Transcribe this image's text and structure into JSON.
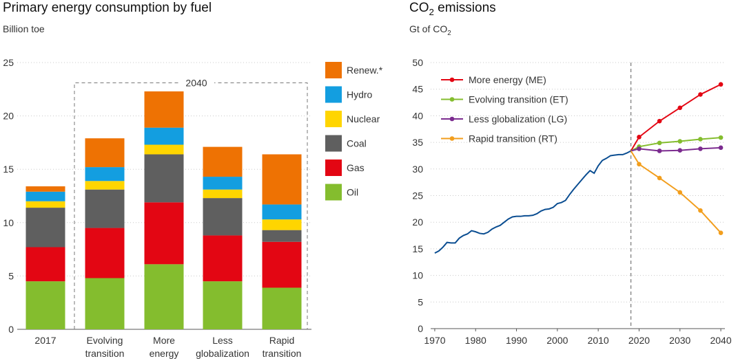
{
  "chart_data": [
    {
      "type": "bar",
      "stacked": true,
      "title": "Primary energy consumption by fuel",
      "ylabel": "Billion toe",
      "ylim": [
        0,
        25
      ],
      "yticks": [
        0,
        5,
        10,
        15,
        20,
        25
      ],
      "categories": [
        [
          "2017"
        ],
        [
          "Evolving",
          "transition"
        ],
        [
          "More",
          "energy"
        ],
        [
          "Less",
          "globalization"
        ],
        [
          "Rapid",
          "transition"
        ]
      ],
      "group_label": "2040",
      "series": [
        {
          "name": "Oil",
          "color": "#84bd2e",
          "values": [
            4.5,
            4.8,
            6.1,
            4.5,
            3.9
          ]
        },
        {
          "name": "Gas",
          "color": "#e30613",
          "values": [
            3.2,
            4.7,
            5.8,
            4.3,
            4.3
          ]
        },
        {
          "name": "Coal",
          "color": "#5f5f5f",
          "values": [
            3.7,
            3.6,
            4.5,
            3.5,
            1.1
          ]
        },
        {
          "name": "Nuclear",
          "color": "#ffd500",
          "values": [
            0.6,
            0.8,
            0.9,
            0.8,
            1.0
          ]
        },
        {
          "name": "Hydro",
          "color": "#139ee0",
          "values": [
            0.9,
            1.3,
            1.6,
            1.2,
            1.4
          ]
        },
        {
          "name": "Renew.*",
          "color": "#ee7203",
          "values": [
            0.5,
            2.7,
            3.4,
            2.8,
            4.7
          ]
        }
      ]
    },
    {
      "type": "line",
      "title_main": "CO",
      "title_sub": "2",
      "title_rest": " emissions",
      "ylabel_main": "Gt of CO",
      "ylabel_sub": "2",
      "xlim": [
        1969,
        2041
      ],
      "ylim": [
        0,
        50
      ],
      "xticks": [
        1970,
        1980,
        1990,
        2000,
        2010,
        2020,
        2030,
        2040
      ],
      "yticks": [
        0,
        5,
        10,
        15,
        20,
        25,
        30,
        35,
        40,
        45,
        50
      ],
      "reference_line_x": 2018,
      "history": {
        "color": "#0a4d91",
        "x": [
          1970,
          1971,
          1972,
          1973,
          1974,
          1975,
          1976,
          1977,
          1978,
          1979,
          1980,
          1981,
          1982,
          1983,
          1984,
          1985,
          1986,
          1987,
          1988,
          1989,
          1990,
          1991,
          1992,
          1993,
          1994,
          1995,
          1996,
          1997,
          1998,
          1999,
          2000,
          2001,
          2002,
          2003,
          2004,
          2005,
          2006,
          2007,
          2008,
          2009,
          2010,
          2011,
          2012,
          2013,
          2014,
          2015,
          2016,
          2017,
          2018
        ],
        "y": [
          14.2,
          14.6,
          15.3,
          16.2,
          16.1,
          16.1,
          17.0,
          17.5,
          17.8,
          18.4,
          18.2,
          17.9,
          17.8,
          18.1,
          18.7,
          19.1,
          19.4,
          20.0,
          20.6,
          21.0,
          21.1,
          21.1,
          21.2,
          21.2,
          21.3,
          21.6,
          22.1,
          22.4,
          22.5,
          22.8,
          23.5,
          23.7,
          24.1,
          25.2,
          26.2,
          27.1,
          28.0,
          28.9,
          29.7,
          29.2,
          30.6,
          31.6,
          32.0,
          32.5,
          32.6,
          32.7,
          32.7,
          33.0,
          33.4
        ]
      },
      "series": [
        {
          "name": "More energy (ME)",
          "color": "#e30613",
          "x": [
            2018,
            2020,
            2025,
            2030,
            2035,
            2040
          ],
          "y": [
            33.4,
            36.0,
            39.0,
            41.5,
            44.0,
            45.9
          ]
        },
        {
          "name": "Evolving transition (ET)",
          "color": "#84bd2e",
          "x": [
            2018,
            2020,
            2025,
            2030,
            2035,
            2040
          ],
          "y": [
            33.4,
            34.2,
            34.9,
            35.2,
            35.6,
            35.9
          ]
        },
        {
          "name": "Less globalization (LG)",
          "color": "#7b2b8f",
          "x": [
            2018,
            2020,
            2025,
            2030,
            2035,
            2040
          ],
          "y": [
            33.4,
            33.8,
            33.4,
            33.5,
            33.8,
            34.0
          ]
        },
        {
          "name": "Rapid transition (RT)",
          "color": "#f29e1d",
          "x": [
            2018,
            2020,
            2025,
            2030,
            2035,
            2040
          ],
          "y": [
            33.4,
            30.9,
            28.3,
            25.6,
            22.2,
            18.0
          ]
        }
      ]
    }
  ]
}
